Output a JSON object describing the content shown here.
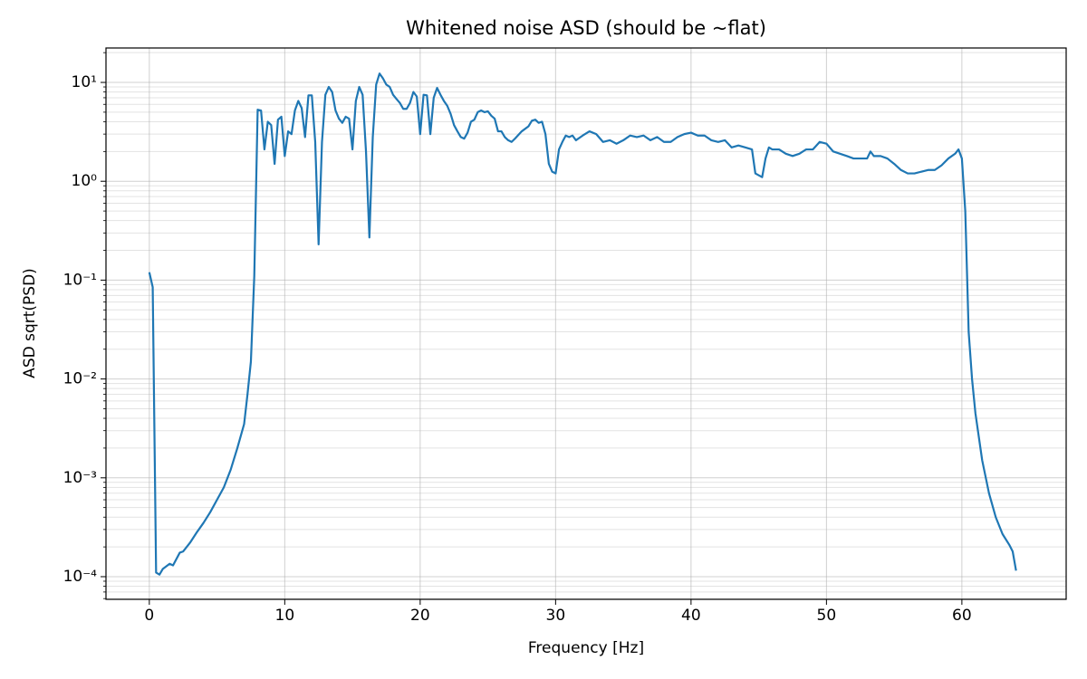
{
  "chart_data": {
    "type": "line",
    "title": "Whitened noise ASD (should be ~flat)",
    "xlabel": "Frequency [Hz]",
    "ylabel": "ASD sqrt(PSD)",
    "color": "#1f77b4",
    "log_y": true,
    "grid": true,
    "minor_grid": true,
    "xlim": [
      -3.2,
      67.7
    ],
    "ylim": [
      5.9e-05,
      22.3
    ],
    "xticks": [
      0,
      10,
      20,
      30,
      40,
      50,
      60
    ],
    "yticks": [
      {
        "value": 0.0001,
        "label": "10⁻⁴"
      },
      {
        "value": 0.001,
        "label": "10⁻³"
      },
      {
        "value": 0.01,
        "label": "10⁻²"
      },
      {
        "value": 0.1,
        "label": "10⁻¹"
      },
      {
        "value": 1,
        "label": "10⁰"
      },
      {
        "value": 10,
        "label": "10¹"
      }
    ],
    "x": [
      0,
      0.25,
      0.5,
      0.75,
      1,
      1.5,
      1.75,
      2.25,
      2.5,
      3,
      3.5,
      4,
      4.5,
      5,
      5.5,
      6,
      6.5,
      7,
      7.25,
      7.5,
      7.75,
      8,
      8.25,
      8.5,
      8.75,
      9,
      9.25,
      9.5,
      9.75,
      10,
      10.25,
      10.5,
      10.75,
      11,
      11.25,
      11.5,
      11.75,
      12,
      12.25,
      12.5,
      12.75,
      13,
      13.25,
      13.5,
      13.75,
      14,
      14.25,
      14.5,
      14.75,
      15,
      15.25,
      15.5,
      15.75,
      16,
      16.25,
      16.5,
      16.75,
      17,
      17.25,
      17.5,
      17.75,
      18,
      18.25,
      18.5,
      18.75,
      19,
      19.25,
      19.5,
      19.75,
      20,
      20.25,
      20.5,
      20.75,
      21,
      21.25,
      21.5,
      21.75,
      22,
      22.25,
      22.5,
      22.75,
      23,
      23.25,
      23.5,
      23.75,
      24,
      24.25,
      24.5,
      24.75,
      25,
      25.25,
      25.5,
      25.75,
      26,
      26.25,
      26.5,
      26.75,
      27,
      27.5,
      28,
      28.25,
      28.5,
      28.75,
      29,
      29.25,
      29.5,
      29.75,
      30,
      30.25,
      30.5,
      30.75,
      31,
      31.25,
      31.5,
      32,
      32.5,
      33,
      33.5,
      34,
      34.5,
      35,
      35.5,
      36,
      36.5,
      37,
      37.5,
      38,
      38.5,
      39,
      39.5,
      40,
      40.5,
      41,
      41.5,
      42,
      42.5,
      43,
      43.5,
      44,
      44.5,
      44.75,
      45.25,
      45.5,
      45.75,
      46,
      46.5,
      47,
      47.5,
      48,
      48.5,
      49,
      49.5,
      50,
      50.5,
      51,
      51.5,
      52,
      52.5,
      53,
      53.25,
      53.5,
      54,
      54.5,
      55,
      55.5,
      56,
      56.5,
      57,
      57.5,
      58,
      58.5,
      59,
      59.5,
      59.75,
      60,
      60.25,
      60.5,
      60.75,
      61,
      61.5,
      62,
      62.5,
      63,
      63.5,
      63.75,
      64
    ],
    "values": [
      0.12,
      0.085,
      0.00011,
      0.000105,
      0.00012,
      0.000135,
      0.00013,
      0.000175,
      0.00018,
      0.00022,
      0.00028,
      0.00035,
      0.00045,
      0.0006,
      0.0008,
      0.0012,
      0.002,
      0.0035,
      0.007,
      0.015,
      0.11,
      5.3,
      5.2,
      2.1,
      4.0,
      3.7,
      1.5,
      4.2,
      4.5,
      1.8,
      3.2,
      3.0,
      5.2,
      6.5,
      5.5,
      2.8,
      7.4,
      7.4,
      2.5,
      0.23,
      2.5,
      7.5,
      9.0,
      8.0,
      5.2,
      4.3,
      3.9,
      4.5,
      4.3,
      2.1,
      6.5,
      9.0,
      7.5,
      2.0,
      0.27,
      2.8,
      9.5,
      12.3,
      11,
      9.5,
      9,
      7.5,
      6.8,
      6.2,
      5.4,
      5.4,
      6.2,
      8.0,
      7.2,
      3.0,
      7.5,
      7.4,
      3.0,
      7.0,
      8.8,
      7.5,
      6.5,
      5.8,
      4.8,
      3.7,
      3.2,
      2.8,
      2.7,
      3.1,
      4.0,
      4.2,
      5.0,
      5.2,
      5.0,
      5.1,
      4.6,
      4.3,
      3.2,
      3.2,
      2.8,
      2.6,
      2.5,
      2.7,
      3.2,
      3.6,
      4.1,
      4.2,
      3.9,
      4.0,
      3.0,
      1.5,
      1.25,
      1.2,
      2.1,
      2.5,
      2.9,
      2.8,
      2.9,
      2.6,
      2.9,
      3.2,
      3.0,
      2.5,
      2.6,
      2.4,
      2.6,
      2.9,
      2.8,
      2.9,
      2.6,
      2.8,
      2.5,
      2.5,
      2.8,
      3.0,
      3.1,
      2.9,
      2.9,
      2.6,
      2.5,
      2.6,
      2.2,
      2.3,
      2.2,
      2.1,
      1.2,
      1.1,
      1.7,
      2.2,
      2.1,
      2.1,
      1.9,
      1.8,
      1.9,
      2.1,
      2.1,
      2.5,
      2.4,
      2.0,
      1.9,
      1.8,
      1.7,
      1.7,
      1.7,
      2.0,
      1.8,
      1.8,
      1.7,
      1.5,
      1.3,
      1.2,
      1.2,
      1.25,
      1.3,
      1.3,
      1.45,
      1.7,
      1.9,
      2.1,
      1.7,
      0.5,
      0.03,
      0.01,
      0.0045,
      0.0015,
      0.0007,
      0.0004,
      0.00027,
      0.00021,
      0.00018,
      0.000115
    ]
  }
}
